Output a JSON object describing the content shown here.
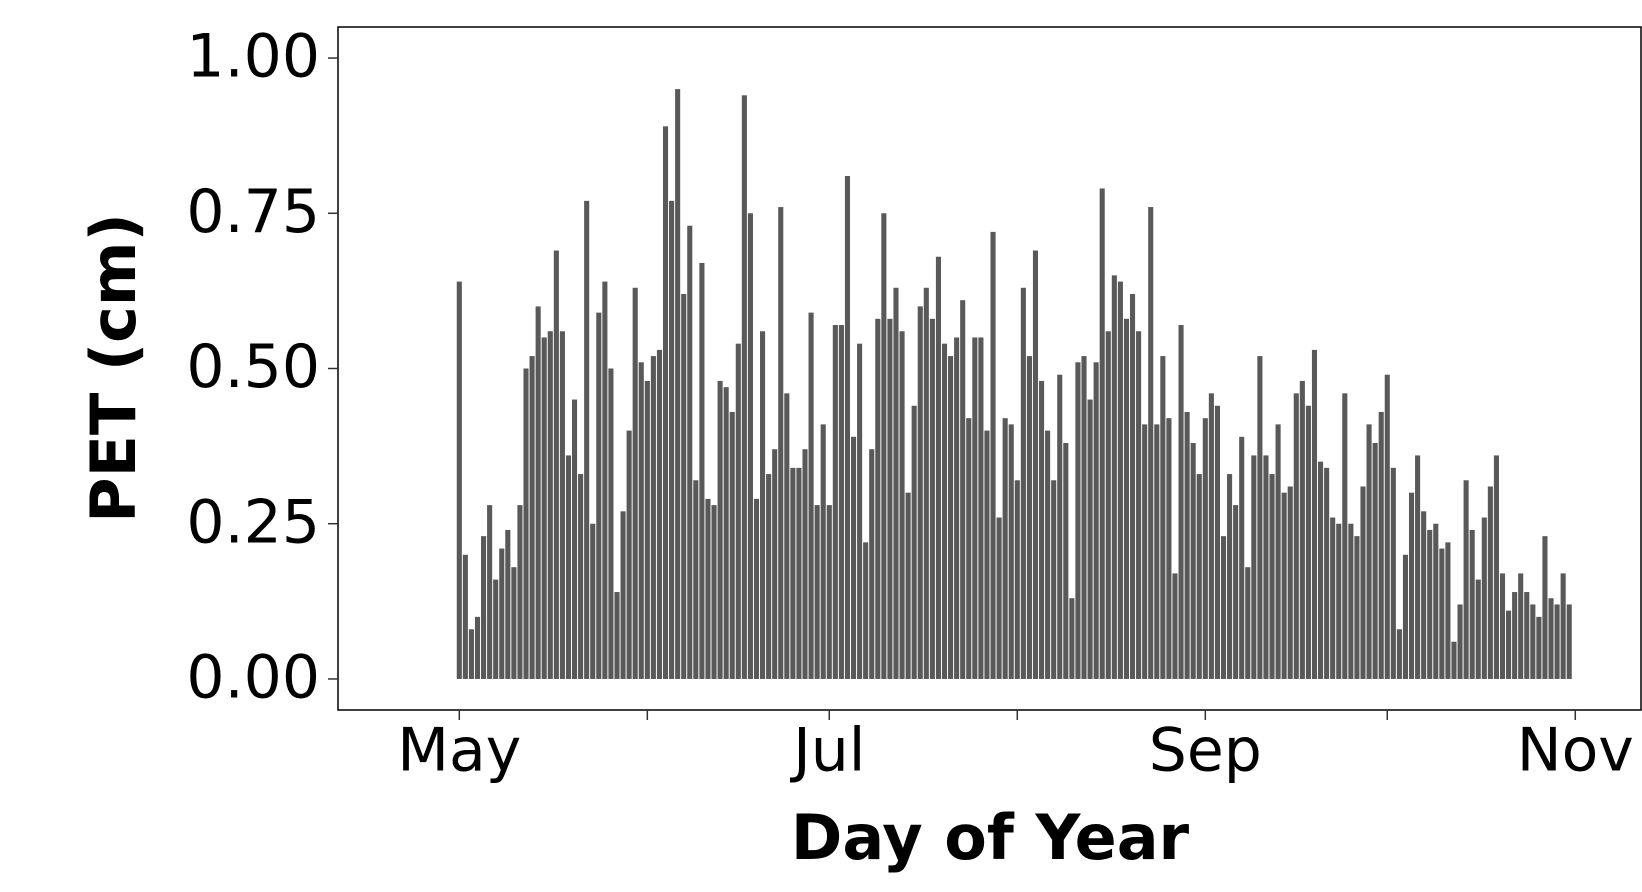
{
  "chart_data": {
    "type": "bar",
    "x_label": "Day of Year",
    "y_label": "PET (cm)",
    "color": "#595959",
    "x": [
      121,
      122,
      123,
      124,
      125,
      126,
      127,
      128,
      129,
      130,
      131,
      132,
      133,
      134,
      135,
      136,
      137,
      138,
      139,
      140,
      141,
      142,
      143,
      144,
      145,
      146,
      147,
      148,
      149,
      150,
      151,
      152,
      153,
      154,
      155,
      156,
      157,
      158,
      159,
      160,
      161,
      162,
      163,
      164,
      165,
      166,
      167,
      168,
      169,
      170,
      171,
      172,
      173,
      174,
      175,
      176,
      177,
      178,
      179,
      180,
      181,
      182,
      183,
      184,
      185,
      186,
      187,
      188,
      189,
      190,
      191,
      192,
      193,
      194,
      195,
      196,
      197,
      198,
      199,
      200,
      201,
      202,
      203,
      204,
      205,
      206,
      207,
      208,
      209,
      210,
      211,
      212,
      213,
      214,
      215,
      216,
      217,
      218,
      219,
      220,
      221,
      222,
      223,
      224,
      225,
      226,
      227,
      228,
      229,
      230,
      231,
      232,
      233,
      234,
      235,
      236,
      237,
      238,
      239,
      240,
      241,
      242,
      243,
      244,
      245,
      246,
      247,
      248,
      249,
      250,
      251,
      252,
      253,
      254,
      255,
      256,
      257,
      258,
      259,
      260,
      261,
      262,
      263,
      264,
      265,
      266,
      267,
      268,
      269,
      270,
      271,
      272,
      273,
      274,
      275,
      276,
      277,
      278,
      279,
      280,
      281,
      282,
      283,
      284,
      285,
      286,
      287,
      288,
      289,
      290,
      291,
      292,
      293,
      294,
      295,
      296,
      297,
      298,
      299,
      300,
      301,
      302,
      303,
      304
    ],
    "values": [
      0.64,
      0.2,
      0.08,
      0.1,
      0.23,
      0.28,
      0.16,
      0.21,
      0.24,
      0.18,
      0.28,
      0.5,
      0.52,
      0.6,
      0.55,
      0.56,
      0.69,
      0.56,
      0.36,
      0.45,
      0.33,
      0.77,
      0.25,
      0.59,
      0.64,
      0.5,
      0.14,
      0.27,
      0.4,
      0.63,
      0.51,
      0.48,
      0.52,
      0.53,
      0.89,
      0.77,
      0.95,
      0.62,
      0.73,
      0.32,
      0.67,
      0.29,
      0.28,
      0.48,
      0.47,
      0.43,
      0.54,
      0.94,
      0.75,
      0.29,
      0.56,
      0.33,
      0.37,
      0.76,
      0.46,
      0.34,
      0.34,
      0.37,
      0.59,
      0.28,
      0.41,
      0.28,
      0.57,
      0.57,
      0.81,
      0.39,
      0.54,
      0.22,
      0.37,
      0.58,
      0.75,
      0.58,
      0.63,
      0.56,
      0.3,
      0.44,
      0.6,
      0.63,
      0.58,
      0.68,
      0.54,
      0.52,
      0.55,
      0.61,
      0.42,
      0.55,
      0.55,
      0.4,
      0.72,
      0.26,
      0.42,
      0.41,
      0.32,
      0.63,
      0.52,
      0.69,
      0.48,
      0.4,
      0.32,
      0.49,
      0.38,
      0.13,
      0.51,
      0.52,
      0.45,
      0.51,
      0.79,
      0.56,
      0.65,
      0.64,
      0.58,
      0.62,
      0.56,
      0.41,
      0.76,
      0.41,
      0.52,
      0.42,
      0.17,
      0.57,
      0.43,
      0.38,
      0.33,
      0.42,
      0.46,
      0.44,
      0.23,
      0.33,
      0.28,
      0.39,
      0.18,
      0.36,
      0.52,
      0.36,
      0.33,
      0.41,
      0.3,
      0.31,
      0.46,
      0.48,
      0.44,
      0.53,
      0.35,
      0.34,
      0.26,
      0.25,
      0.46,
      0.25,
      0.23,
      0.31,
      0.41,
      0.38,
      0.43,
      0.49,
      0.34,
      0.08,
      0.2,
      0.3,
      0.36,
      0.27,
      0.24,
      0.25,
      0.21,
      0.22,
      0.06,
      0.12,
      0.32,
      0.24,
      0.16,
      0.26,
      0.31,
      0.36,
      0.17,
      0.11,
      0.14,
      0.17,
      0.14,
      0.12,
      0.1,
      0.23,
      0.13,
      0.12,
      0.17,
      0.12
    ],
    "xlim": [
      101,
      316
    ],
    "ylim": [
      -0.05,
      1.05
    ],
    "xticks": [
      {
        "value": 121,
        "label": "May"
      },
      {
        "value": 182,
        "label": "Jul"
      },
      {
        "value": 244,
        "label": "Sep"
      },
      {
        "value": 305,
        "label": "Nov"
      }
    ],
    "xminorticks": [
      152,
      213,
      274
    ],
    "yticks": [
      {
        "value": 0,
        "label": "0.00"
      },
      {
        "value": 0.25,
        "label": "0.25"
      },
      {
        "value": 0.5,
        "label": "0.50"
      },
      {
        "value": 0.75,
        "label": "0.75"
      },
      {
        "value": 1,
        "label": "1.00"
      }
    ]
  }
}
